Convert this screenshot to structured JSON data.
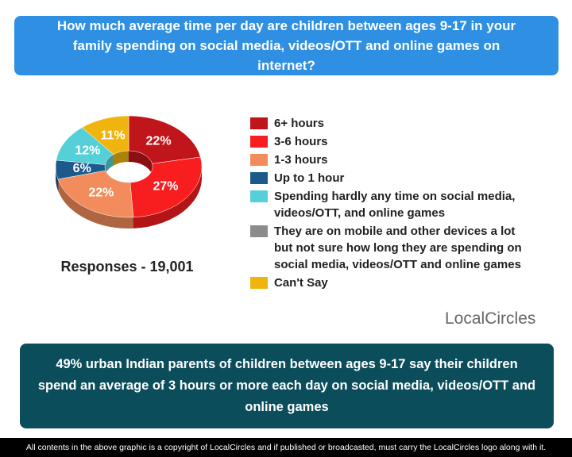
{
  "chart_data": {
    "type": "pie",
    "title": "How much average time per day are children between ages 9-17 in your family spending on social media, videos/OTT and online games on internet?",
    "subtitle": "Responses - 19,001",
    "categories": [
      "6+ hours",
      "3-6 hours",
      "1-3 hours",
      "Up to 1 hour",
      "Spending hardly any time on social media, videos/OTT, and online games",
      "They are on mobile and other devices a lot but not sure how long they are spending on social media, videos/OTT and online games",
      "Can't Say"
    ],
    "values": [
      22,
      27,
      22,
      6,
      12,
      0,
      11
    ],
    "value_labels": [
      "22%",
      "27%",
      "22%",
      "6%",
      "12%",
      null,
      "11%"
    ],
    "colors": [
      "#c0151a",
      "#f81d1f",
      "#f38c5c",
      "#1d5a8c",
      "#55d0d8",
      "#8c8c8c",
      "#f0b40f"
    ],
    "donut": true
  },
  "logo": "LocalCircles",
  "summary": "49% urban Indian parents of children between ages 9-17 say their children spend an average of 3 hours or more each day on social media, videos/OTT and online games",
  "footer": "All contents in the above graphic is a copyright of LocalCircles and if published or broadcasted, must carry the LocalCircles logo along with it."
}
